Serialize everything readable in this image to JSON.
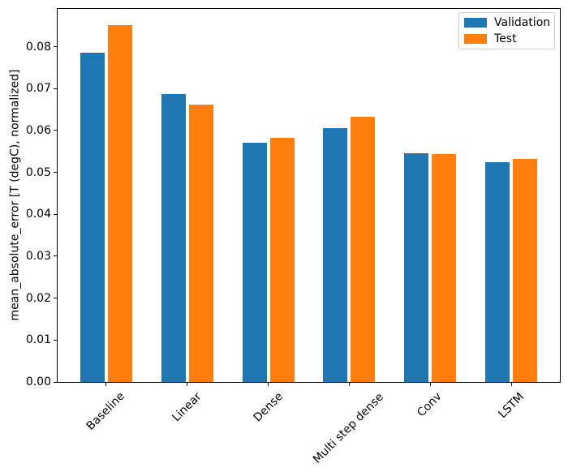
{
  "chart_data": {
    "type": "bar",
    "title": "",
    "xlabel": "",
    "ylabel": "mean_absolute_error [T (degC), normalized]",
    "categories": [
      "Baseline",
      "Linear",
      "Dense",
      "Multi step dense",
      "Conv",
      "LSTM"
    ],
    "series": [
      {
        "name": "Validation",
        "color": "#1f77b4",
        "values": [
          0.0785,
          0.0686,
          0.0571,
          0.0606,
          0.0545,
          0.0524
        ]
      },
      {
        "name": "Test",
        "color": "#ff7f0e",
        "values": [
          0.0852,
          0.0662,
          0.0583,
          0.0633,
          0.0543,
          0.0533
        ]
      }
    ],
    "y_ticks": [
      "0.00",
      "0.01",
      "0.02",
      "0.03",
      "0.04",
      "0.05",
      "0.06",
      "0.07",
      "0.08"
    ],
    "ylim": [
      0,
      0.089
    ],
    "xlim": [
      -0.6,
      5.6
    ],
    "bar_width": 0.3,
    "bar_group_offsets": [
      -0.17,
      0.17
    ],
    "grid": false,
    "legend_position": "upper right",
    "x_tick_rotation_deg": 45
  }
}
